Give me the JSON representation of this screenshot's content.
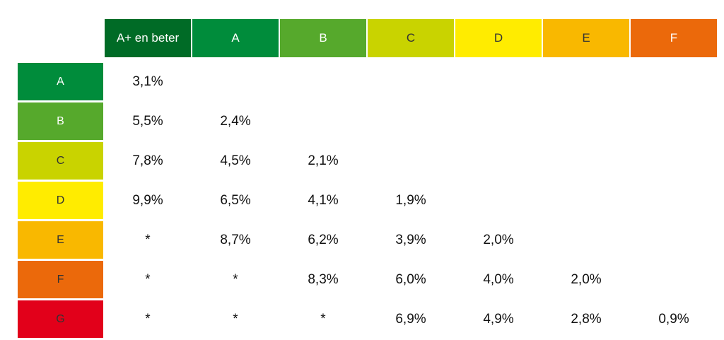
{
  "chart_data": {
    "type": "table",
    "title": "",
    "columns": [
      {
        "label": "A+ en beter",
        "color": "#006b26",
        "text_color": "#ffffff"
      },
      {
        "label": "A",
        "color": "#008c3b",
        "text_color": "#ffffff"
      },
      {
        "label": "B",
        "color": "#56a92c",
        "text_color": "#ffffff"
      },
      {
        "label": "C",
        "color": "#c9d300",
        "text_color": "#333333"
      },
      {
        "label": "D",
        "color": "#ffec00",
        "text_color": "#333333"
      },
      {
        "label": "E",
        "color": "#f9b800",
        "text_color": "#333333"
      },
      {
        "label": "F",
        "color": "#eb690b",
        "text_color": "#ffffff"
      }
    ],
    "rows": [
      {
        "label": "A",
        "color": "#008c3b",
        "text_color": "#ffffff",
        "values": [
          "3,1%",
          "",
          "",
          "",
          "",
          "",
          ""
        ]
      },
      {
        "label": "B",
        "color": "#56a92c",
        "text_color": "#ffffff",
        "values": [
          "5,5%",
          "2,4%",
          "",
          "",
          "",
          "",
          ""
        ]
      },
      {
        "label": "C",
        "color": "#c9d300",
        "text_color": "#333333",
        "values": [
          "7,8%",
          "4,5%",
          "2,1%",
          "",
          "",
          "",
          ""
        ]
      },
      {
        "label": "D",
        "color": "#ffec00",
        "text_color": "#333333",
        "values": [
          "9,9%",
          "6,5%",
          "4,1%",
          "1,9%",
          "",
          "",
          ""
        ]
      },
      {
        "label": "E",
        "color": "#f9b800",
        "text_color": "#333333",
        "values": [
          "*",
          "8,7%",
          "6,2%",
          "3,9%",
          "2,0%",
          "",
          ""
        ]
      },
      {
        "label": "F",
        "color": "#eb690b",
        "text_color": "#333333",
        "values": [
          "*",
          "*",
          "8,3%",
          "6,0%",
          "4,0%",
          "2,0%",
          ""
        ]
      },
      {
        "label": "G",
        "color": "#e2001a",
        "text_color": "#333333",
        "values": [
          "*",
          "*",
          "*",
          "6,9%",
          "4,9%",
          "2,8%",
          "0,9%"
        ]
      }
    ]
  }
}
